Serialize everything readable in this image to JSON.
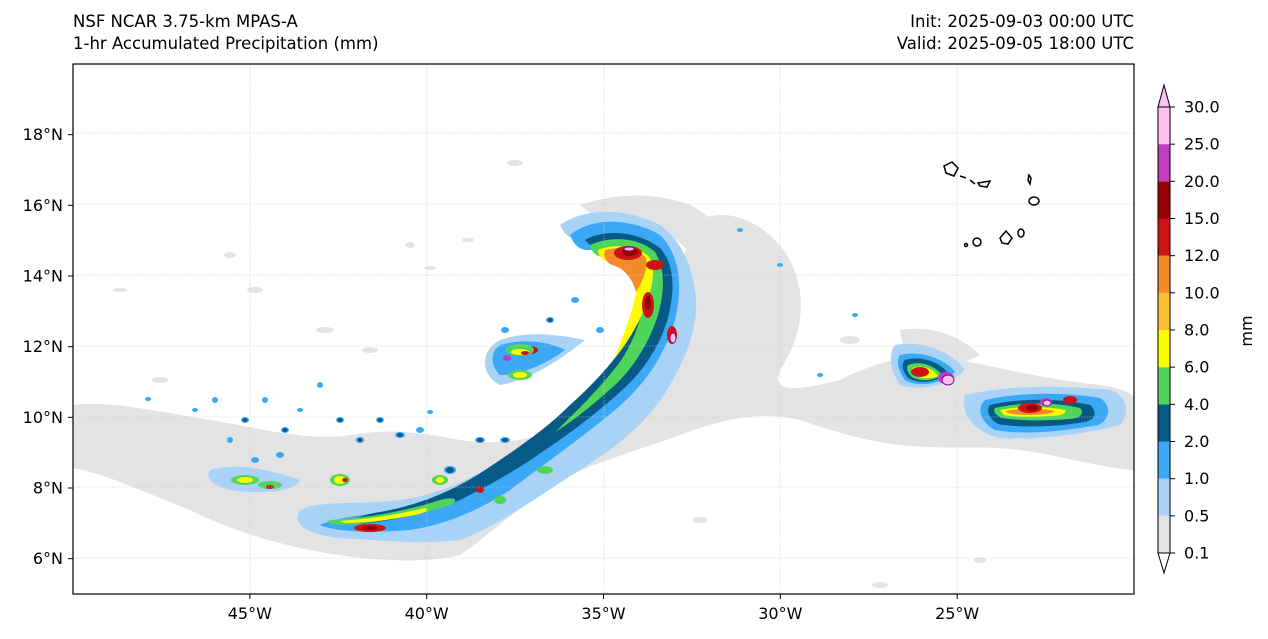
{
  "header": {
    "model": "NSF NCAR 3.75-km MPAS-A",
    "field": "1-hr Accumulated Precipitation (mm)",
    "init": "Init: 2025-09-03 00:00 UTC",
    "valid": "Valid: 2025-09-05 18:00 UTC"
  },
  "map": {
    "lat_ticks": [
      "18°N",
      "16°N",
      "14°N",
      "12°N",
      "10°N",
      "8°N",
      "6°N"
    ],
    "lon_ticks": [
      "45°W",
      "40°W",
      "35°W",
      "30°W",
      "25°W"
    ],
    "lat_values": [
      18,
      16,
      14,
      12,
      10,
      8,
      6
    ],
    "lon_values": [
      -45,
      -40,
      -35,
      -30,
      -25
    ]
  },
  "colorbar": {
    "unit": "mm",
    "levels": [
      "0.1",
      "0.5",
      "1.0",
      "2.0",
      "4.0",
      "6.0",
      "8.0",
      "10.0",
      "12.0",
      "15.0",
      "20.0",
      "25.0",
      "30.0"
    ],
    "colors": [
      "#e3e3e3",
      "#a8d3f7",
      "#3aa8f5",
      "#075a86",
      "#4fd65a",
      "#fdfd00",
      "#fcbf3a",
      "#f58a2b",
      "#cc1414",
      "#970202",
      "#bf3dbf",
      "#fdc0f5"
    ]
  }
}
